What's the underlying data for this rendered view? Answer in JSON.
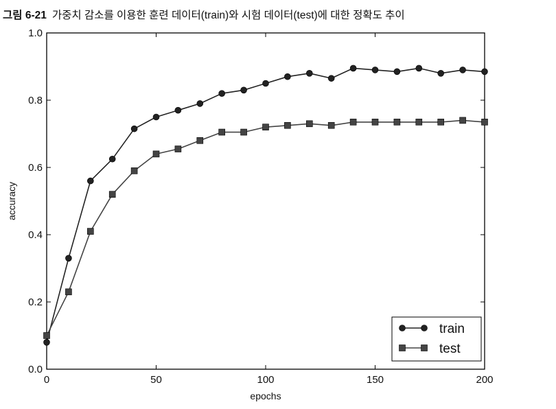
{
  "caption": {
    "label": "그림 6-21",
    "text": "가중치 감소를 이용한 훈련 데이터(train)와 시험 데이터(test)에 대한 정확도 추이"
  },
  "chart_data": {
    "type": "line",
    "title": "",
    "xlabel": "epochs",
    "ylabel": "accuracy",
    "xlim": [
      0,
      200
    ],
    "ylim": [
      0.0,
      1.0
    ],
    "xticks": [
      0,
      50,
      100,
      150,
      200
    ],
    "yticks": [
      0.0,
      0.2,
      0.4,
      0.6,
      0.8,
      1.0
    ],
    "xtick_labels": [
      "0",
      "50",
      "100",
      "150",
      "200"
    ],
    "ytick_labels": [
      "0.0",
      "0.2",
      "0.4",
      "0.6",
      "0.8",
      "1.0"
    ],
    "grid": false,
    "legend_position": "lower-right",
    "series": [
      {
        "name": "train",
        "marker": "circle",
        "color": "#222222",
        "x": [
          0,
          10,
          20,
          30,
          40,
          50,
          60,
          70,
          80,
          90,
          100,
          110,
          120,
          130,
          140,
          150,
          160,
          170,
          180,
          190,
          200
        ],
        "y": [
          0.08,
          0.33,
          0.56,
          0.625,
          0.715,
          0.75,
          0.77,
          0.79,
          0.82,
          0.83,
          0.85,
          0.87,
          0.88,
          0.865,
          0.895,
          0.89,
          0.885,
          0.895,
          0.88,
          0.89,
          0.885
        ]
      },
      {
        "name": "test",
        "marker": "square",
        "color": "#444444",
        "x": [
          0,
          10,
          20,
          30,
          40,
          50,
          60,
          70,
          80,
          90,
          100,
          110,
          120,
          130,
          140,
          150,
          160,
          170,
          180,
          190,
          200
        ],
        "y": [
          0.1,
          0.23,
          0.41,
          0.52,
          0.59,
          0.64,
          0.655,
          0.68,
          0.705,
          0.705,
          0.72,
          0.725,
          0.73,
          0.725,
          0.735,
          0.735,
          0.735,
          0.735,
          0.735,
          0.74,
          0.735
        ]
      }
    ]
  }
}
